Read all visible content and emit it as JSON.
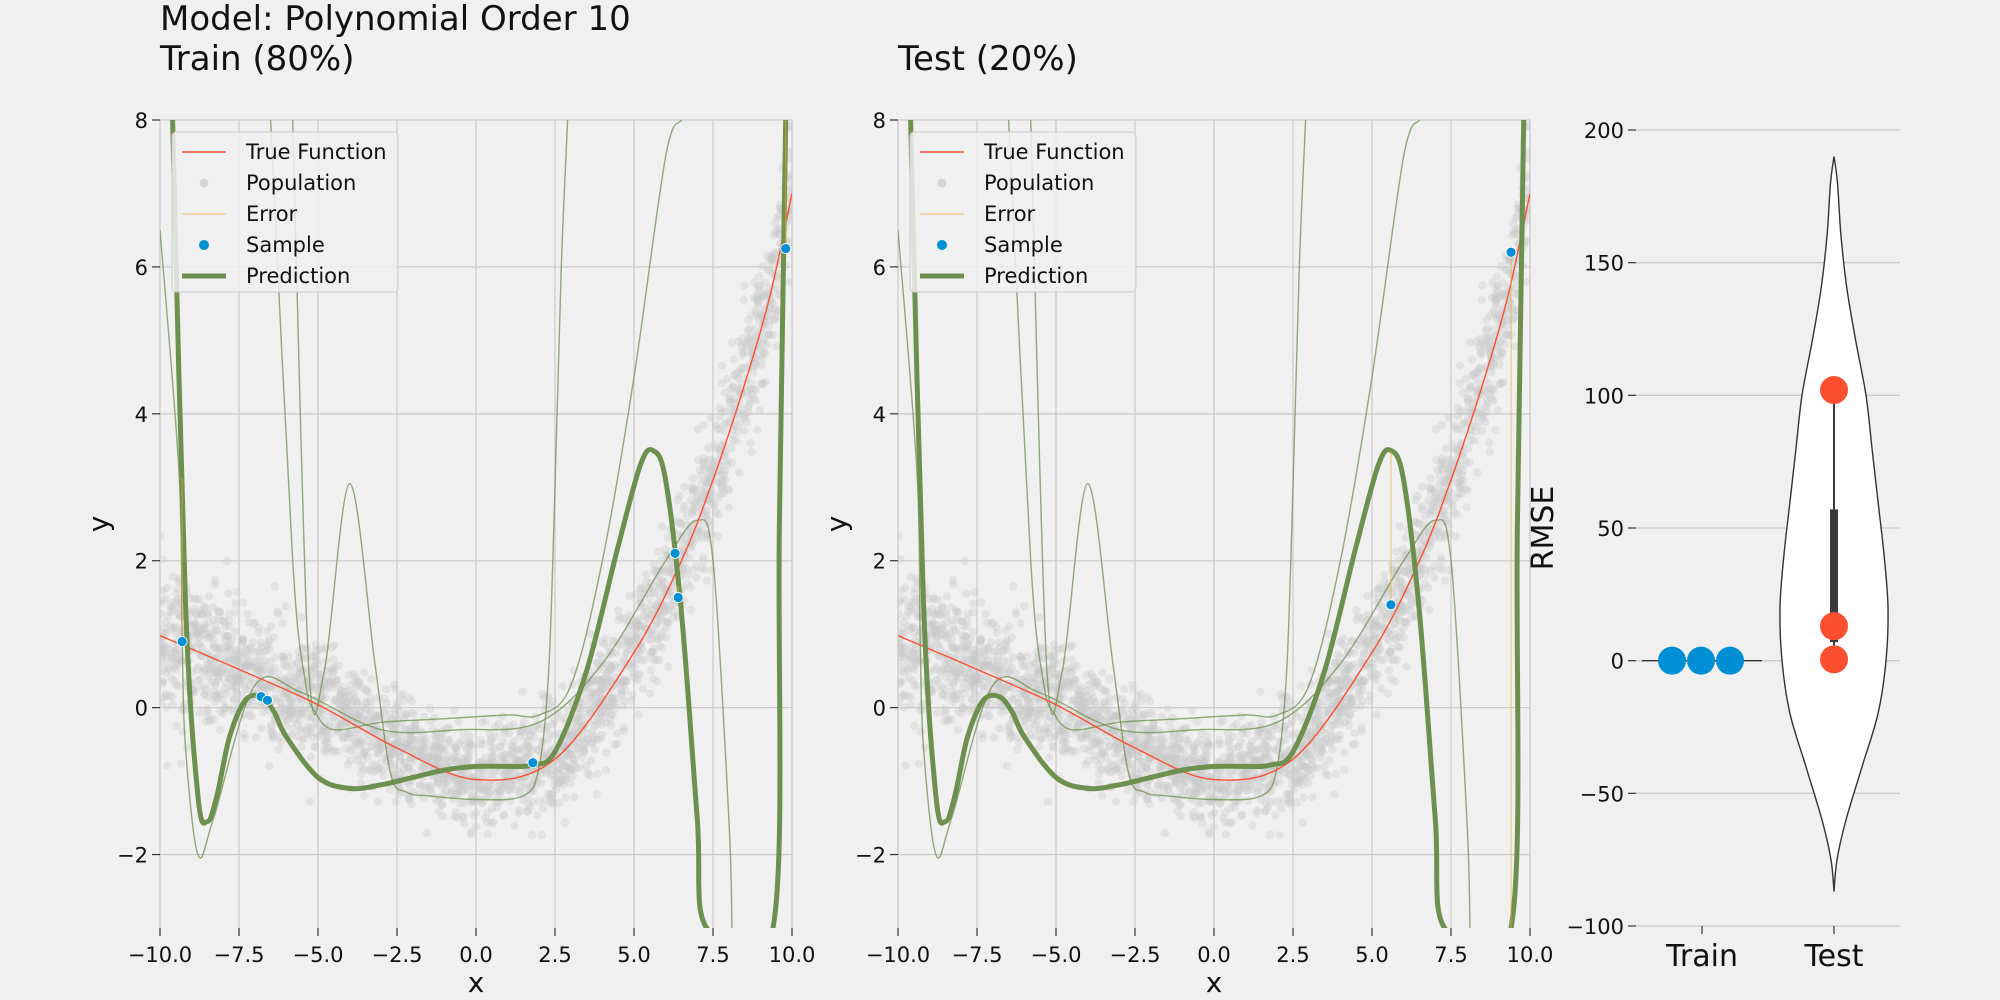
{
  "figure": {
    "title_line1": "Model: Polynomial Order 10",
    "title_line2": "Train (80%)",
    "title_test": "Test (20%)"
  },
  "colors": {
    "background": "#f0f0f0",
    "grid": "#cbcbcb",
    "true_function": "#fc4f30",
    "population": "#c8c8c8",
    "error": "#e5ae38",
    "sample": "#008fd5",
    "prediction": "#6d904f",
    "train_points": "#008fd5",
    "test_points": "#fc4f30"
  },
  "chart_data": [
    {
      "type": "line",
      "panel": "train",
      "title": "Train (80%)",
      "xlabel": "x",
      "ylabel": "y",
      "xlim": [
        -10,
        10
      ],
      "ylim": [
        -3,
        8
      ],
      "xticks": [
        -10,
        -7.5,
        -5,
        -2.5,
        0,
        2.5,
        5,
        7.5,
        10
      ],
      "xtick_labels": [
        "−10.0",
        "−7.5",
        "−5.0",
        "−2.5",
        "0.0",
        "2.5",
        "5.0",
        "7.5",
        "10.0"
      ],
      "yticks": [
        -2,
        0,
        2,
        4,
        6,
        8
      ],
      "ytick_labels": [
        "−2",
        "0",
        "2",
        "4",
        "6",
        "8"
      ],
      "grid": true,
      "legend": [
        "True Function",
        "Population",
        "Error",
        "Sample",
        "Prediction"
      ],
      "legend_position": "top-left",
      "true_function": {
        "x": [
          -10,
          -7.5,
          -5,
          -2.5,
          0,
          2.5,
          5,
          6.5,
          7.5,
          8.5,
          9.3,
          10
        ],
        "y": [
          0.98,
          0.52,
          0.04,
          -0.55,
          -0.98,
          -0.7,
          0.75,
          2.0,
          3.1,
          4.4,
          5.6,
          7.0
        ]
      },
      "samples": {
        "x": [
          -9.3,
          -6.8,
          -6.6,
          1.8,
          6.3,
          6.4,
          9.8
        ],
        "y": [
          0.9,
          0.15,
          0.1,
          -0.75,
          2.1,
          1.5,
          6.25
        ]
      },
      "prediction": {
        "x": [
          -9.6,
          -9.2,
          -8.8,
          -8.5,
          -8.2,
          -7.8,
          -7.3,
          -6.8,
          -6.4,
          -6.0,
          -5.0,
          -4.0,
          -3.0,
          -2.0,
          -1.0,
          0,
          1.0,
          1.8,
          2.5,
          3.5,
          4.5,
          5.2,
          5.6,
          6.0,
          6.5,
          7.0,
          7.3,
          9.4,
          9.6,
          9.8
        ],
        "y": [
          8.0,
          1.5,
          -1.2,
          -1.55,
          -1.2,
          -0.4,
          0.1,
          0.15,
          -0.05,
          -0.4,
          -0.95,
          -1.1,
          -1.05,
          -0.95,
          -0.85,
          -0.8,
          -0.8,
          -0.78,
          -0.6,
          0.5,
          2.2,
          3.3,
          3.5,
          3.1,
          1.3,
          -1.5,
          -3.0,
          -3.0,
          2.5,
          8.0
        ]
      },
      "other_fits": [
        {
          "x": [
            -10,
            -9.4,
            -9.3,
            -9.2,
            -8.8,
            -8.3,
            -7.0,
            -5.5,
            -3.0,
            -0.5,
            2.0,
            4.0,
            6.0,
            7.0,
            7.5,
            8.0,
            8.1
          ],
          "y": [
            6.5,
            3.2,
            1.0,
            -0.5,
            -2.0,
            -1.5,
            0.3,
            0.2,
            -0.3,
            -0.3,
            -0.2,
            0.6,
            2.0,
            2.55,
            2.0,
            -1.5,
            -3.0
          ]
        },
        {
          "x": [
            -5.8,
            -5.3,
            -4.8,
            -4.0,
            -3.2,
            -2.7,
            -2.2,
            -1.5,
            0,
            1.5,
            2.0,
            2.3,
            2.5,
            2.7,
            2.9
          ],
          "y": [
            8.0,
            0.6,
            0.5,
            3.05,
            0.6,
            -0.9,
            -1.15,
            -1.2,
            -1.25,
            -1.2,
            -0.8,
            0.5,
            3.0,
            6.0,
            8.0
          ]
        },
        {
          "x": [
            -6.5,
            -5.8,
            -5.4,
            -5.1,
            -4.5,
            -3.0,
            -1.0,
            1.0,
            2.0,
            3.0,
            4.0,
            5.0,
            6.0,
            6.5
          ],
          "y": [
            8.0,
            2.0,
            0.35,
            -0.05,
            -0.3,
            -0.2,
            -0.15,
            -0.1,
            -0.1,
            0.3,
            2.0,
            4.5,
            7.5,
            8.0
          ]
        }
      ]
    },
    {
      "type": "line",
      "panel": "test",
      "title": "Test (20%)",
      "xlabel": "x",
      "ylabel": "y",
      "xlim": [
        -10,
        10
      ],
      "ylim": [
        -3,
        8
      ],
      "xticks": [
        -10,
        -7.5,
        -5,
        -2.5,
        0,
        2.5,
        5,
        7.5,
        10
      ],
      "xtick_labels": [
        "−10.0",
        "−7.5",
        "−5.0",
        "−2.5",
        "0.0",
        "2.5",
        "5.0",
        "7.5",
        "10.0"
      ],
      "yticks": [
        -2,
        0,
        2,
        4,
        6,
        8
      ],
      "ytick_labels": [
        "−2",
        "0",
        "2",
        "4",
        "6",
        "8"
      ],
      "grid": true,
      "legend": [
        "True Function",
        "Population",
        "Error",
        "Sample",
        "Prediction"
      ],
      "legend_position": "top-left",
      "samples": {
        "x": [
          5.6,
          9.4
        ],
        "y": [
          1.4,
          6.2
        ]
      }
    },
    {
      "type": "violin",
      "panel": "rmse",
      "ylabel": "RMSE",
      "categories": [
        "Train",
        "Test"
      ],
      "ylim": [
        -100,
        200
      ],
      "yticks": [
        -100,
        -50,
        0,
        50,
        100,
        150,
        200
      ],
      "ytick_labels": [
        "−100",
        "−50",
        "0",
        "50",
        "100",
        "150",
        "200"
      ],
      "grid": true,
      "series": [
        {
          "name": "Train",
          "values": [
            0,
            0,
            0
          ]
        },
        {
          "name": "Test",
          "values": [
            102,
            13,
            0.5
          ]
        }
      ],
      "test_violin_range": [
        -87,
        190
      ],
      "test_box": {
        "q1": 7,
        "q3": 57,
        "whisker_low": 0.5,
        "whisker_high": 102,
        "median": 13
      }
    }
  ]
}
